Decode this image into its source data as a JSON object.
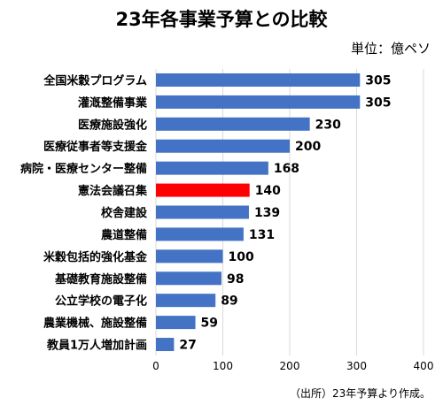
{
  "chart_data": {
    "type": "bar",
    "orientation": "horizontal",
    "title": "23年各事業予算との比較",
    "unit": "単位：億ペソ",
    "source": "（出所）23年予算より作成。",
    "categories": [
      "全国米穀プログラム",
      "灌漑整備事業",
      "医療施設強化",
      "医療従事者等支援金",
      "病院・医療センター整備",
      "憲法会議召集",
      "校舎建設",
      "農道整備",
      "米穀包括的強化基金",
      "基礎教育施設整備",
      "公立学校の電子化",
      "農業機械、施設整備",
      "教員1万人増加計画"
    ],
    "values": [
      305,
      305,
      230,
      200,
      168,
      140,
      139,
      131,
      100,
      98,
      89,
      59,
      27
    ],
    "value_labels": [
      "305",
      "305",
      "230",
      "200",
      "168",
      "140",
      "139",
      "131",
      "100",
      "98",
      "89",
      "59",
      "27"
    ],
    "highlight_index": 5,
    "xlim": [
      0,
      400
    ],
    "xticks": [
      0,
      100,
      200,
      300,
      400
    ],
    "xtick_labels": [
      "0",
      "100",
      "200",
      "300",
      "400"
    ],
    "grid": "vertical",
    "colors": {
      "bar": "#4472c4",
      "highlight": "#ff0000",
      "grid": "#d9d9d9"
    }
  }
}
